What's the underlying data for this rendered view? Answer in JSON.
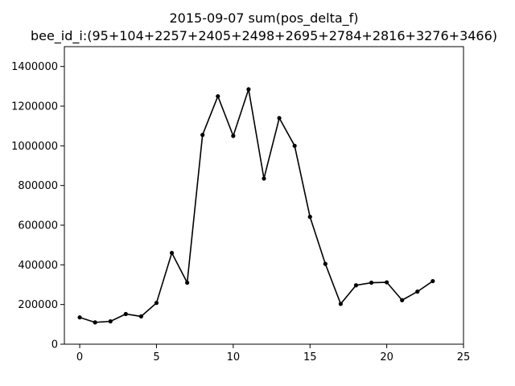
{
  "chart_data": {
    "type": "line",
    "title_line1": "2015-09-07 sum(pos_delta_f)",
    "title_line2": "bee_id_i:(95+104+2257+2405+2498+2695+2784+2816+3276+3466)",
    "xlabel": "",
    "ylabel": "",
    "xlim": [
      -1,
      25
    ],
    "ylim": [
      0,
      1500000
    ],
    "xticks": [
      0,
      5,
      10,
      15,
      20,
      25
    ],
    "yticks": [
      0,
      200000,
      400000,
      600000,
      800000,
      1000000,
      1200000,
      1400000
    ],
    "xtick_labels": [
      "0",
      "5",
      "10",
      "15",
      "20",
      "25"
    ],
    "ytick_labels": [
      "0",
      "200000",
      "400000",
      "600000",
      "800000",
      "1000000",
      "1200000",
      "1400000"
    ],
    "grid": false,
    "color": "#000000",
    "x": [
      0,
      1,
      2,
      3,
      4,
      5,
      6,
      7,
      8,
      9,
      10,
      11,
      12,
      13,
      14,
      15,
      16,
      17,
      18,
      19,
      20,
      21,
      22,
      23
    ],
    "y": [
      135000,
      110000,
      115000,
      152000,
      140000,
      208000,
      460000,
      310000,
      1055000,
      1250000,
      1050000,
      1285000,
      835000,
      1140000,
      1000000,
      642000,
      405000,
      203000,
      297000,
      310000,
      312000,
      222000,
      265000,
      318000
    ]
  }
}
